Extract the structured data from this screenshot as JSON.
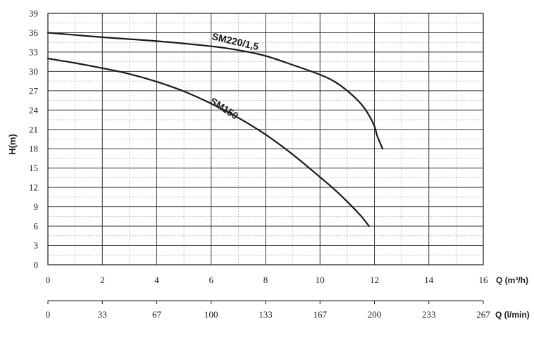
{
  "chart_data": {
    "type": "line",
    "title": "",
    "ylabel": "H(m)",
    "xlabel": "Q (m³/h)",
    "x2label": "Q (l/min)",
    "xlim": [
      0,
      16
    ],
    "ylim": [
      0,
      39
    ],
    "x_ticks": [
      "0",
      "2",
      "4",
      "6",
      "8",
      "10",
      "12",
      "14",
      "16"
    ],
    "x2_ticks": [
      "0",
      "33",
      "67",
      "100",
      "133",
      "167",
      "200",
      "233",
      "267"
    ],
    "y_ticks": [
      "0",
      "3",
      "6",
      "9",
      "12",
      "15",
      "18",
      "21",
      "24",
      "27",
      "30",
      "33",
      "36",
      "39"
    ],
    "grid": true,
    "series": [
      {
        "name": "SM220/1,5",
        "x": [
          0,
          2,
          4,
          6,
          7,
          8,
          9,
          10,
          10.5,
          11,
          11.5,
          11.8,
          12.0,
          12.1,
          12.2,
          12.3
        ],
        "y": [
          36,
          35.3,
          34.7,
          33.9,
          33.3,
          32.4,
          31.0,
          29.5,
          28.5,
          27.0,
          25.0,
          23.2,
          21.5,
          20.0,
          19.0,
          18.0
        ]
      },
      {
        "name": "SM150",
        "x": [
          0,
          1,
          2,
          3,
          4,
          5,
          6,
          7,
          8,
          9,
          10,
          10.5,
          11,
          11.5,
          11.8
        ],
        "y": [
          32.0,
          31.3,
          30.5,
          29.6,
          28.4,
          26.9,
          25.0,
          22.8,
          20.2,
          17.1,
          13.6,
          11.8,
          9.8,
          7.6,
          6.0
        ]
      }
    ]
  }
}
